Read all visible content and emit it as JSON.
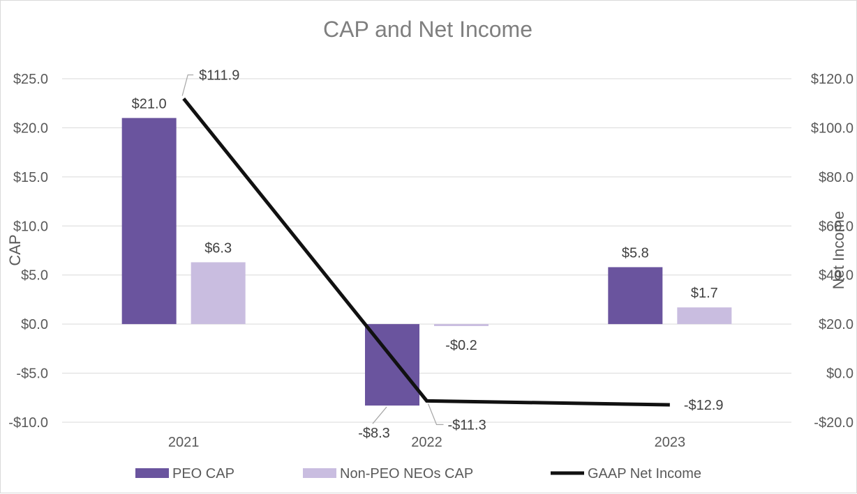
{
  "chart_data": {
    "type": "bar",
    "title": "CAP and Net Income",
    "categories": [
      "2021",
      "2022",
      "2023"
    ],
    "y_left": {
      "label": "CAP",
      "ylim": [
        -10,
        25
      ],
      "ticks": [
        25,
        20,
        15,
        10,
        5,
        0,
        -5,
        -10
      ],
      "tick_labels": [
        "$25.0",
        "$20.0",
        "$15.0",
        "$10.0",
        "$5.0",
        "$0.0",
        "-$5.0",
        "-$10.0"
      ]
    },
    "y_right": {
      "label": "Net Income",
      "ylim": [
        -20,
        120
      ],
      "ticks": [
        120,
        100,
        80,
        60,
        40,
        20,
        0,
        -20
      ],
      "tick_labels": [
        "$120.0",
        "$100.0",
        "$80.0",
        "$60.0",
        "$40.0",
        "$20.0",
        "$0.0",
        "-$20.0"
      ]
    },
    "series": [
      {
        "name": "PEO CAP",
        "kind": "bar",
        "axis": "left",
        "color": "#6a549e",
        "values": [
          21.0,
          -8.3,
          5.8
        ],
        "labels": [
          "$21.0",
          "-$8.3",
          "$5.8"
        ]
      },
      {
        "name": "Non-PEO NEOs CAP",
        "kind": "bar",
        "axis": "left",
        "color": "#c9bde0",
        "values": [
          6.3,
          -0.2,
          1.7
        ],
        "labels": [
          "$6.3",
          "-$0.2",
          "$1.7"
        ]
      },
      {
        "name": "GAAP Net Income",
        "kind": "line",
        "axis": "right",
        "color": "#111111",
        "values": [
          111.9,
          -11.3,
          -12.9
        ],
        "labels": [
          "$111.9",
          "-$11.3",
          "-$12.9"
        ]
      }
    ],
    "grid": true,
    "legend_position": "bottom"
  }
}
